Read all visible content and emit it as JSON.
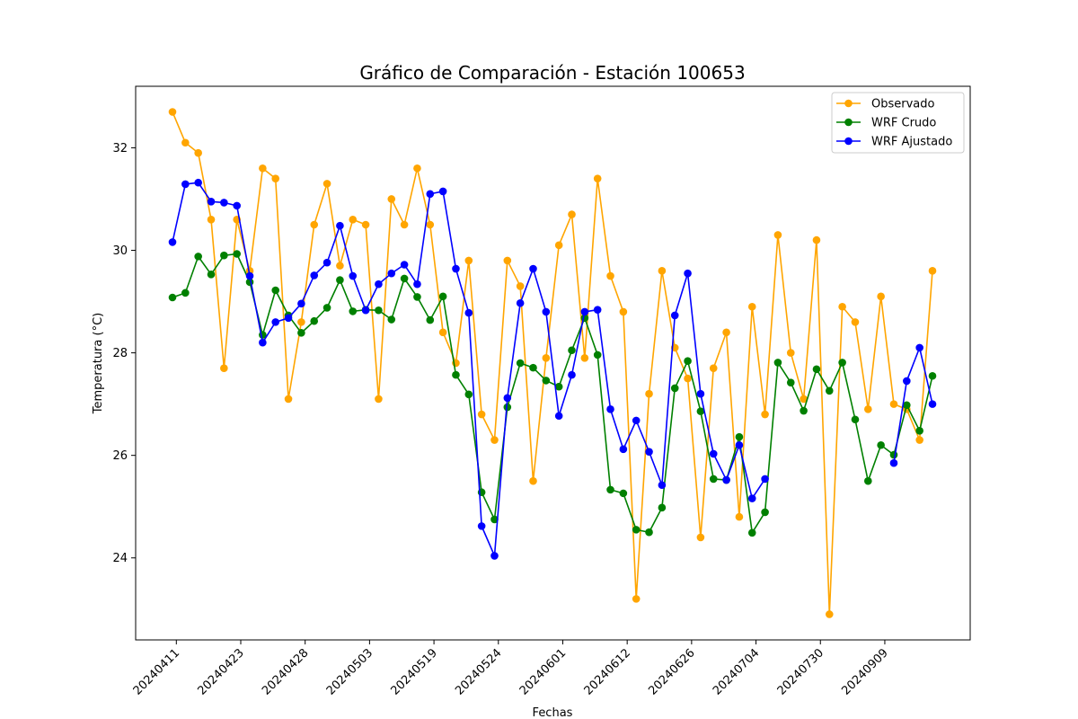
{
  "chart_data": {
    "type": "line",
    "title": "Gráfico de Comparación - Estación 100653",
    "xlabel": "Fechas",
    "ylabel": "Temperatura (°C)",
    "ylim": [
      22.4,
      33.2
    ],
    "yticks": [
      24,
      26,
      28,
      30,
      32
    ],
    "xticks": [
      {
        "label": "20240411",
        "index": 0.3
      },
      {
        "label": "20240423",
        "index": 5.3
      },
      {
        "label": "20240428",
        "index": 10.3
      },
      {
        "label": "20240503",
        "index": 15.3
      },
      {
        "label": "20240519",
        "index": 20.3
      },
      {
        "label": "20240524",
        "index": 25.3
      },
      {
        "label": "20240601",
        "index": 30.3
      },
      {
        "label": "20240612",
        "index": 35.3
      },
      {
        "label": "20240626",
        "index": 40.3
      },
      {
        "label": "20240704",
        "index": 45.3
      },
      {
        "label": "20240730",
        "index": 50.3
      },
      {
        "label": "20240909",
        "index": 55.3
      }
    ],
    "grid": false,
    "legend_position": "upper right",
    "series": [
      {
        "name": "Observado",
        "color": "#ffa500",
        "values": [
          32.7,
          32.1,
          31.9,
          30.6,
          27.7,
          30.6,
          29.6,
          31.6,
          31.4,
          27.1,
          28.6,
          30.5,
          31.3,
          29.7,
          30.6,
          30.5,
          27.1,
          31.0,
          30.5,
          31.6,
          30.5,
          28.4,
          27.8,
          29.8,
          26.8,
          26.3,
          29.8,
          29.3,
          25.5,
          27.9,
          30.1,
          30.7,
          27.9,
          31.4,
          29.5,
          28.8,
          23.2,
          27.2,
          29.6,
          28.1,
          27.5,
          24.4,
          27.7,
          28.4,
          24.8,
          28.9,
          26.8,
          30.3,
          28.0,
          27.1,
          30.2,
          22.9,
          28.9,
          28.6,
          26.9,
          29.1,
          27.0,
          26.9,
          26.3,
          29.6
        ]
      },
      {
        "name": "WRF Crudo",
        "color": "#008000",
        "values": [
          29.08,
          29.17,
          29.88,
          29.53,
          29.9,
          29.93,
          29.38,
          28.35,
          29.22,
          28.73,
          28.39,
          28.62,
          28.88,
          29.42,
          28.81,
          28.84,
          28.83,
          28.65,
          29.45,
          29.09,
          28.64,
          29.1,
          27.57,
          27.19,
          25.28,
          24.75,
          26.94,
          27.8,
          27.71,
          27.46,
          27.34,
          28.05,
          28.68,
          27.96,
          25.33,
          25.26,
          24.55,
          24.5,
          24.98,
          27.31,
          27.84,
          26.86,
          25.54,
          25.52,
          26.36,
          24.49,
          24.89,
          27.81,
          27.42,
          26.87,
          27.68,
          27.26,
          27.81,
          26.7,
          25.5,
          26.2,
          26.01,
          26.98,
          26.48,
          27.55
        ]
      },
      {
        "name": "WRF Ajustado",
        "color": "#0000ff",
        "values": [
          30.16,
          31.29,
          31.32,
          30.95,
          30.93,
          30.87,
          29.5,
          28.2,
          28.6,
          28.68,
          28.96,
          29.51,
          29.76,
          30.48,
          29.5,
          28.83,
          29.34,
          29.55,
          29.72,
          29.34,
          31.1,
          31.15,
          29.64,
          28.78,
          24.62,
          24.04,
          27.12,
          28.97,
          29.64,
          28.8,
          26.77,
          27.57,
          28.8,
          28.84,
          26.9,
          26.12,
          26.68,
          26.07,
          25.42,
          28.73,
          29.55,
          27.2,
          26.03,
          25.52,
          26.2,
          25.16,
          25.54,
          null,
          null,
          null,
          null,
          null,
          null,
          null,
          null,
          null,
          25.85,
          27.45,
          28.1,
          27.0
        ]
      }
    ]
  }
}
